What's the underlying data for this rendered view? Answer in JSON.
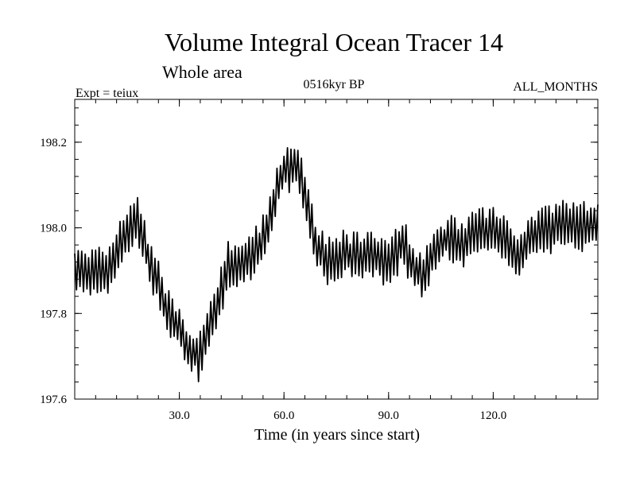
{
  "chart_data": {
    "type": "line",
    "title": "Volume Integral Ocean Tracer 14",
    "subtitle": "Whole area",
    "annotations": {
      "experiment": "Expt = teiux",
      "period": "0516kyr BP",
      "months": "ALL_MONTHS"
    },
    "xlabel": "Time (in years since start)",
    "ylabel": "",
    "xlim": [
      0,
      150
    ],
    "ylim": [
      197.6,
      198.3
    ],
    "x_major_ticks": [
      30,
      60,
      90,
      120
    ],
    "x_tick_labels": [
      "30.0",
      "60.0",
      "90.0",
      "120.0"
    ],
    "y_major_ticks": [
      197.6,
      197.8,
      198.0,
      198.2
    ],
    "y_tick_labels": [
      "197.6",
      "197.8",
      "198.0",
      "198.2"
    ],
    "grid": false,
    "series": [
      {
        "name": "Volume Integral Ocean Tracer 14",
        "color": "#000000",
        "sample_interval_years": 0.5,
        "trend_anchors": [
          [
            0,
            197.9
          ],
          [
            5,
            197.89
          ],
          [
            10,
            197.9
          ],
          [
            14,
            197.98
          ],
          [
            18,
            198.02
          ],
          [
            21,
            197.93
          ],
          [
            25,
            197.84
          ],
          [
            29,
            197.77
          ],
          [
            33,
            197.71
          ],
          [
            36,
            197.7
          ],
          [
            40,
            197.8
          ],
          [
            44,
            197.91
          ],
          [
            50,
            197.92
          ],
          [
            55,
            197.99
          ],
          [
            60,
            198.14
          ],
          [
            63,
            198.15
          ],
          [
            66,
            198.08
          ],
          [
            69,
            197.96
          ],
          [
            73,
            197.92
          ],
          [
            78,
            197.94
          ],
          [
            82,
            197.93
          ],
          [
            86,
            197.94
          ],
          [
            90,
            197.92
          ],
          [
            94,
            197.96
          ],
          [
            97,
            197.92
          ],
          [
            100,
            197.88
          ],
          [
            104,
            197.96
          ],
          [
            108,
            197.98
          ],
          [
            112,
            197.96
          ],
          [
            116,
            198.0
          ],
          [
            120,
            197.99
          ],
          [
            124,
            197.97
          ],
          [
            127,
            197.93
          ],
          [
            130,
            197.98
          ],
          [
            135,
            198.0
          ],
          [
            140,
            198.01
          ],
          [
            145,
            198.0
          ],
          [
            150,
            198.02
          ]
        ],
        "seasonal_amplitude": 0.045
      }
    ]
  }
}
